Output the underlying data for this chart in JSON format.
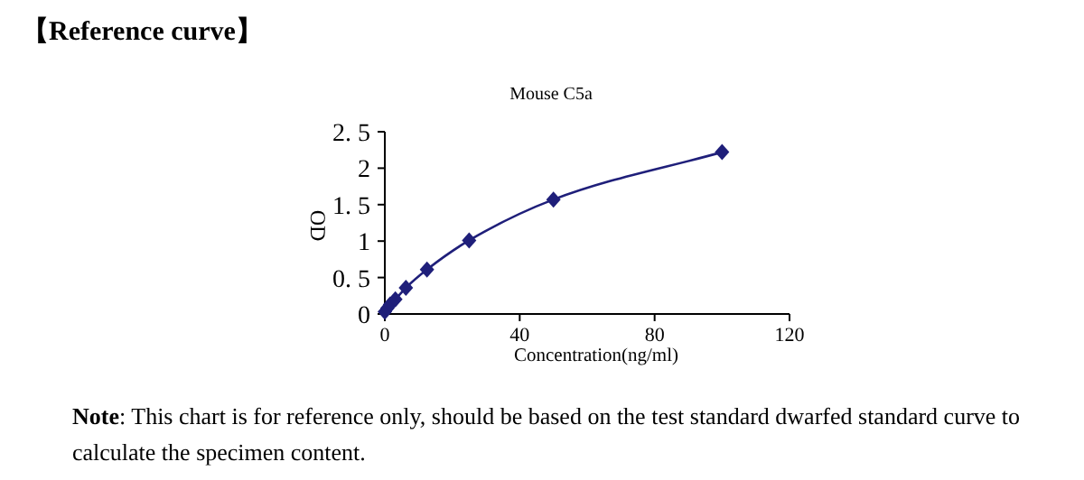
{
  "chart_data": {
    "type": "line",
    "title": "【Reference curve】",
    "subtitle": "Mouse C5a",
    "xlabel": "Concentration(ng/ml)",
    "ylabel": "OD",
    "annotations": [
      "**Note**: This chart is for reference only, should be based on the test standard dwarfed standard curve to calculate the specimen content."
    ],
    "x": [
      0,
      0.78,
      1.56,
      3.125,
      6.25,
      12.5,
      25,
      50,
      100
    ],
    "series": [
      {
        "color": "#1f1f7a",
        "values": [
          0.03,
          0.08,
          0.13,
          0.2,
          0.36,
          0.61,
          1.01,
          1.57,
          2.22
        ]
      }
    ],
    "xlim": [
      0,
      120
    ],
    "xticks": [
      0,
      40,
      80,
      120
    ],
    "ylim": [
      0,
      2.5
    ],
    "yticks": [
      0,
      {
        "value": 0.5,
        "label": "0. 5"
      },
      1,
      {
        "value": 1.5,
        "label": "1. 5"
      },
      2,
      {
        "value": 2.5,
        "label": "2. 5"
      }
    ],
    "grid": false,
    "marker": "diamond",
    "line_style": "solid"
  }
}
